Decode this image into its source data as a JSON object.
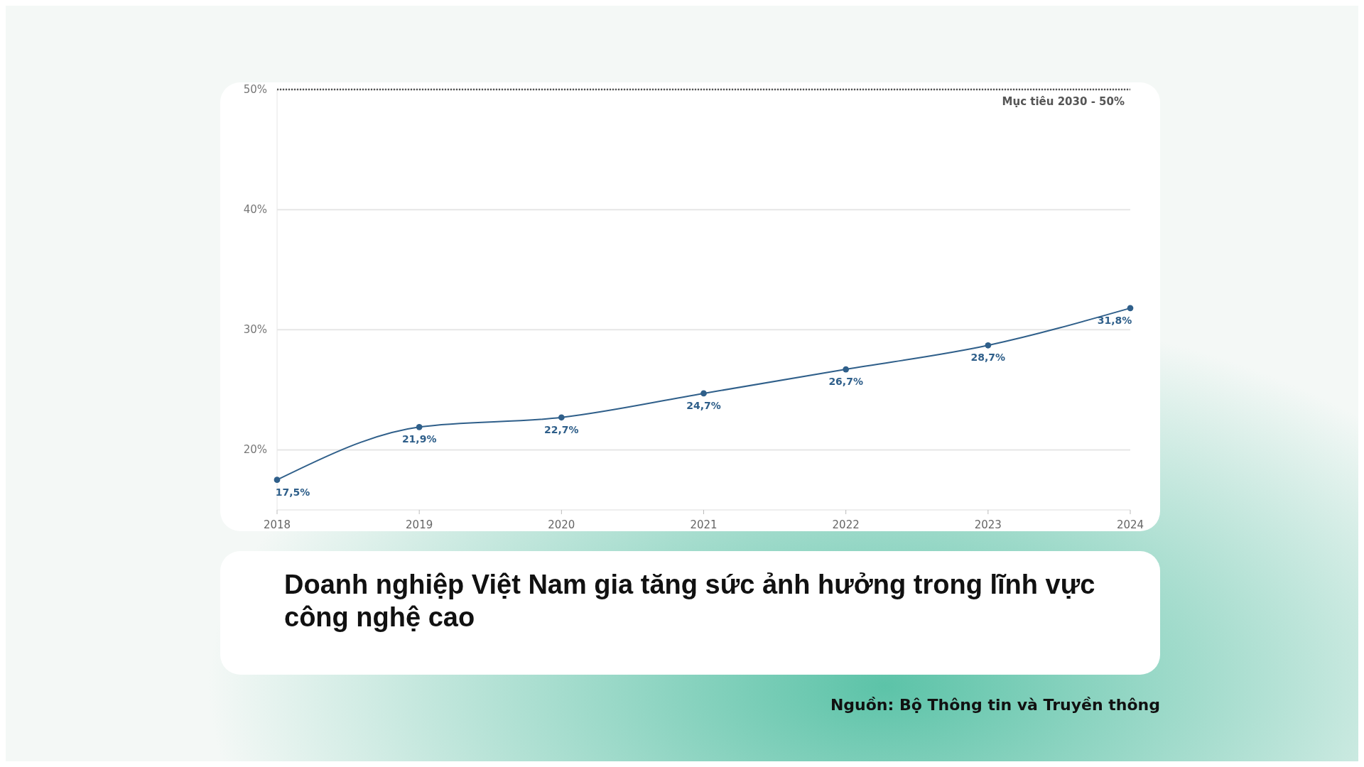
{
  "chart_data": {
    "type": "line",
    "title": "Doanh nghiệp Việt Nam gia tăng sức ảnh hưởng trong lĩnh vực công nghệ cao",
    "categories": [
      "2018",
      "2019",
      "2020",
      "2021",
      "2022",
      "2023",
      "2024"
    ],
    "series": [
      {
        "color": "#2f5f8a",
        "values": [
          17.5,
          21.9,
          22.7,
          24.7,
          26.7,
          28.7,
          31.8
        ],
        "value_labels": [
          "17,5%",
          "21,9%",
          "22,7%",
          "24,7%",
          "26,7%",
          "28,7%",
          "31,8%"
        ]
      }
    ],
    "ylim": [
      15,
      50
    ],
    "yticks": [
      {
        "value": 20,
        "label": "20%"
      },
      {
        "value": 30,
        "label": "30%"
      },
      {
        "value": 40,
        "label": "40%"
      },
      {
        "value": 50,
        "label": "50%"
      }
    ],
    "grid": "y",
    "marker": "circle",
    "line_style": "solid",
    "ref_lines": [
      {
        "axis": "y",
        "value": 50,
        "label": "Mục tiêu 2030 - 50%",
        "color": "#555555",
        "line_style": "dotted"
      }
    ],
    "annotations": [
      "Nguồn: Bộ Thông tin và Truyền thông"
    ]
  }
}
